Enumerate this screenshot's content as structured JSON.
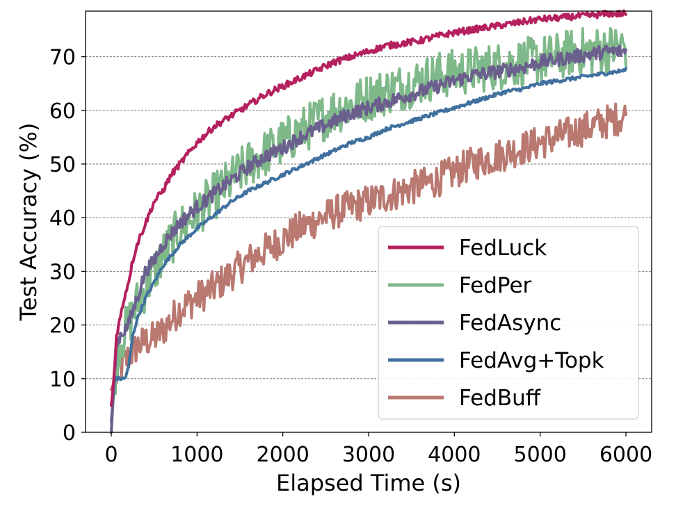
{
  "chart_data": {
    "type": "line",
    "xlabel": "Elapsed Time (s)",
    "ylabel": "Test Accuracy (%)",
    "xlim": [
      -300,
      6300
    ],
    "ylim": [
      0,
      78.5
    ],
    "xticks": [
      0,
      1000,
      2000,
      3000,
      4000,
      5000,
      6000
    ],
    "yticks": [
      0,
      10,
      20,
      30,
      40,
      50,
      60,
      70
    ],
    "grid": "horizontal-dashed",
    "legend_position": "lower-right",
    "series": [
      {
        "name": "FedLuck",
        "color": "#b5205e",
        "points": [
          [
            0,
            5
          ],
          [
            30,
            10
          ],
          [
            60,
            18
          ],
          [
            100,
            21
          ],
          [
            150,
            25
          ],
          [
            200,
            28
          ],
          [
            250,
            32
          ],
          [
            300,
            35
          ],
          [
            400,
            39
          ],
          [
            500,
            43
          ],
          [
            600,
            45
          ],
          [
            700,
            48
          ],
          [
            800,
            50
          ],
          [
            900,
            52
          ],
          [
            1000,
            54
          ],
          [
            1200,
            57
          ],
          [
            1400,
            59
          ],
          [
            1600,
            61
          ],
          [
            1800,
            63
          ],
          [
            2000,
            64.5
          ],
          [
            2200,
            66
          ],
          [
            2400,
            67.5
          ],
          [
            2600,
            69
          ],
          [
            2800,
            70
          ],
          [
            3000,
            71
          ],
          [
            3200,
            72
          ],
          [
            3400,
            72.5
          ],
          [
            3600,
            73
          ],
          [
            3800,
            73.8
          ],
          [
            4000,
            74.5
          ],
          [
            4200,
            75
          ],
          [
            4400,
            75.5
          ],
          [
            4600,
            76
          ],
          [
            4800,
            76.5
          ],
          [
            5000,
            77
          ],
          [
            5200,
            77.2
          ],
          [
            5400,
            77.5
          ],
          [
            5600,
            77.7
          ],
          [
            5800,
            78
          ],
          [
            6000,
            78
          ]
        ],
        "noise": 0.6
      },
      {
        "name": "FedPer",
        "color": "#7fb98a",
        "points": [
          [
            0,
            0
          ],
          [
            30,
            8
          ],
          [
            60,
            14
          ],
          [
            100,
            17
          ],
          [
            200,
            20
          ],
          [
            300,
            24
          ],
          [
            400,
            27
          ],
          [
            500,
            30
          ],
          [
            600,
            33
          ],
          [
            800,
            38
          ],
          [
            1000,
            41
          ],
          [
            1200,
            44
          ],
          [
            1400,
            47
          ],
          [
            1600,
            50
          ],
          [
            1800,
            52
          ],
          [
            2000,
            54
          ],
          [
            2200,
            56
          ],
          [
            2400,
            58
          ],
          [
            2600,
            60
          ],
          [
            2800,
            61
          ],
          [
            3000,
            62.5
          ],
          [
            3200,
            63.5
          ],
          [
            3400,
            64.5
          ],
          [
            3600,
            65.5
          ],
          [
            3800,
            66.5
          ],
          [
            4000,
            67
          ],
          [
            4200,
            67.5
          ],
          [
            4400,
            68
          ],
          [
            4600,
            68.5
          ],
          [
            4800,
            69
          ],
          [
            5000,
            69.5
          ],
          [
            5200,
            70
          ],
          [
            5400,
            71
          ],
          [
            5600,
            71
          ],
          [
            5800,
            71.5
          ],
          [
            6000,
            72
          ]
        ],
        "noise": 4.5
      },
      {
        "name": "FedAsync",
        "color": "#6b5f8e",
        "points": [
          [
            0,
            0
          ],
          [
            30,
            10
          ],
          [
            60,
            16
          ],
          [
            100,
            18
          ],
          [
            200,
            20
          ],
          [
            300,
            25
          ],
          [
            400,
            30
          ],
          [
            500,
            32
          ],
          [
            600,
            35
          ],
          [
            800,
            39
          ],
          [
            1000,
            42
          ],
          [
            1200,
            44.5
          ],
          [
            1400,
            47
          ],
          [
            1600,
            49.5
          ],
          [
            1800,
            51.5
          ],
          [
            2000,
            53
          ],
          [
            2200,
            55
          ],
          [
            2400,
            56.5
          ],
          [
            2600,
            58
          ],
          [
            2800,
            59.5
          ],
          [
            3000,
            60.5
          ],
          [
            3200,
            61.5
          ],
          [
            3400,
            62.5
          ],
          [
            3600,
            63.5
          ],
          [
            3800,
            64.5
          ],
          [
            4000,
            65.5
          ],
          [
            4200,
            66.5
          ],
          [
            4400,
            67
          ],
          [
            4600,
            67.5
          ],
          [
            4800,
            68
          ],
          [
            5000,
            69
          ],
          [
            5200,
            69.5
          ],
          [
            5400,
            70
          ],
          [
            5600,
            70.5
          ],
          [
            5800,
            71
          ],
          [
            6000,
            71
          ]
        ],
        "noise": 1.3
      },
      {
        "name": "FedAvg+Topk",
        "color": "#40709e",
        "points": [
          [
            0,
            2
          ],
          [
            40,
            10
          ],
          [
            100,
            10
          ],
          [
            160,
            10
          ],
          [
            200,
            12
          ],
          [
            250,
            18
          ],
          [
            300,
            21
          ],
          [
            400,
            25
          ],
          [
            500,
            28
          ],
          [
            600,
            31
          ],
          [
            800,
            35
          ],
          [
            1000,
            38
          ],
          [
            1200,
            40.5
          ],
          [
            1400,
            43
          ],
          [
            1600,
            45
          ],
          [
            1800,
            46.5
          ],
          [
            2000,
            48
          ],
          [
            2200,
            49.5
          ],
          [
            2400,
            51
          ],
          [
            2600,
            52.5
          ],
          [
            2800,
            54
          ],
          [
            3000,
            55
          ],
          [
            3200,
            56.5
          ],
          [
            3400,
            57.5
          ],
          [
            3600,
            58.5
          ],
          [
            3800,
            59.5
          ],
          [
            4000,
            60.5
          ],
          [
            4200,
            61.5
          ],
          [
            4400,
            62.5
          ],
          [
            4600,
            63.5
          ],
          [
            4800,
            64
          ],
          [
            5000,
            65
          ],
          [
            5200,
            65.5
          ],
          [
            5400,
            66
          ],
          [
            5600,
            66.5
          ],
          [
            5800,
            67
          ],
          [
            6000,
            67.5
          ]
        ],
        "noise": 0.35
      },
      {
        "name": "FedBuff",
        "color": "#b97870",
        "points": [
          [
            0,
            8
          ],
          [
            100,
            12
          ],
          [
            200,
            14
          ],
          [
            300,
            16
          ],
          [
            400,
            17
          ],
          [
            500,
            17.5
          ],
          [
            600,
            19
          ],
          [
            800,
            23
          ],
          [
            1000,
            25
          ],
          [
            1200,
            27
          ],
          [
            1400,
            29.5
          ],
          [
            1600,
            32
          ],
          [
            1800,
            34
          ],
          [
            2000,
            36
          ],
          [
            2200,
            38
          ],
          [
            2400,
            39.5
          ],
          [
            2600,
            41
          ],
          [
            2800,
            42
          ],
          [
            3000,
            43
          ],
          [
            3200,
            44
          ],
          [
            3400,
            45
          ],
          [
            3600,
            46
          ],
          [
            3800,
            47
          ],
          [
            4000,
            48.5
          ],
          [
            4200,
            50
          ],
          [
            4400,
            51
          ],
          [
            4600,
            52
          ],
          [
            4800,
            53
          ],
          [
            5000,
            54
          ],
          [
            5200,
            55
          ],
          [
            5400,
            56
          ],
          [
            5600,
            57
          ],
          [
            5800,
            58
          ],
          [
            6000,
            59
          ]
        ],
        "noise": 3.2
      }
    ]
  }
}
